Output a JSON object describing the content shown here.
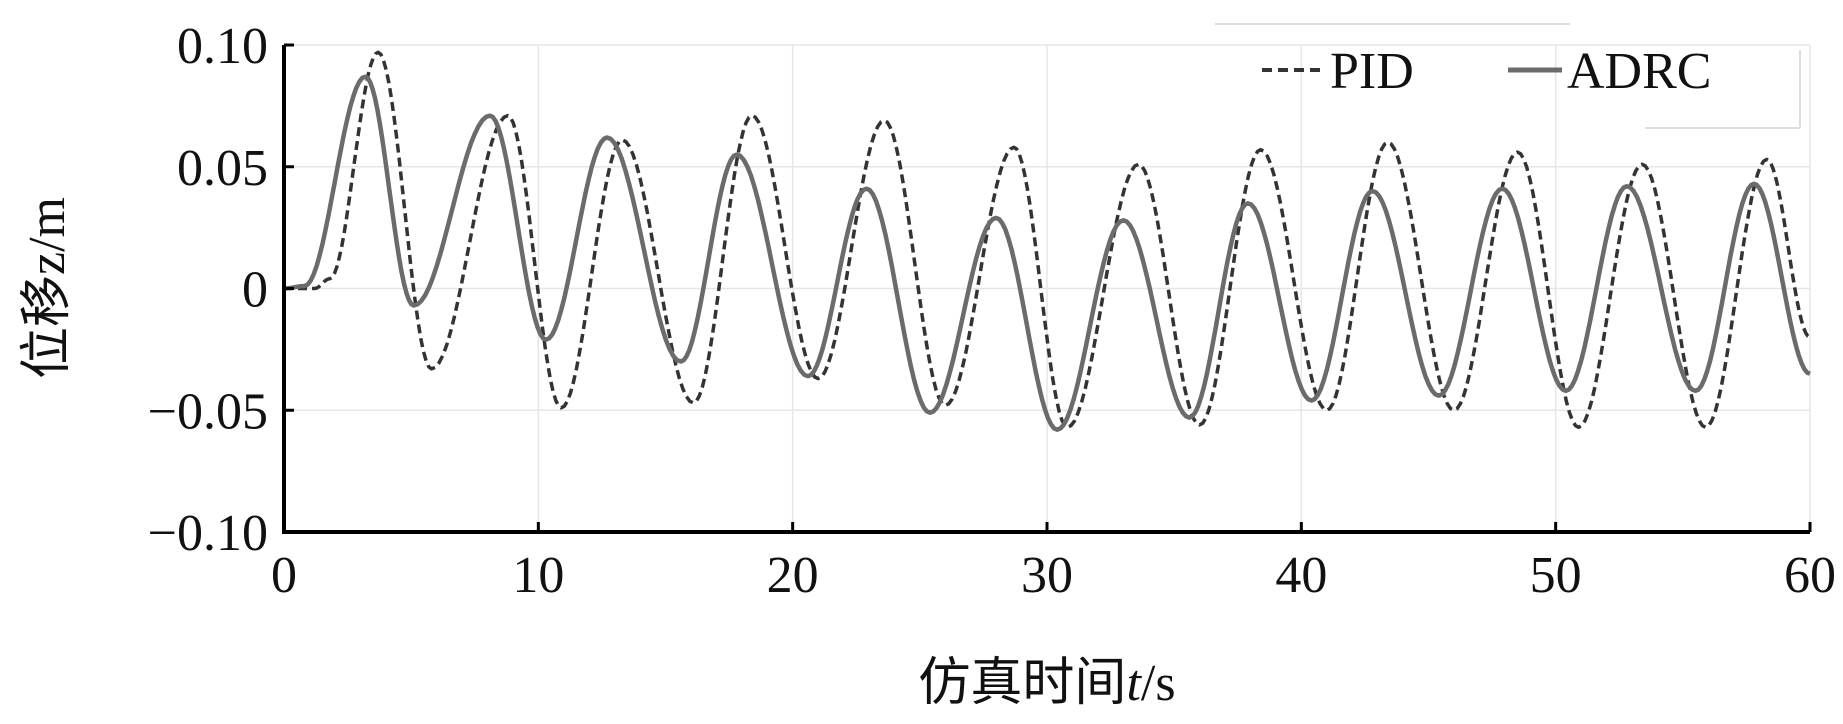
{
  "chart_data": {
    "type": "line",
    "xlabel": "仿真时间t/s",
    "xlabel_parts": {
      "text": "仿真时间",
      "var": "t",
      "unit": "/s"
    },
    "ylabel": "位移z/m",
    "ylabel_parts": {
      "text": "位移",
      "var": "z",
      "unit": "/m"
    },
    "xlim": [
      0,
      60
    ],
    "ylim": [
      -0.1,
      0.1
    ],
    "xticks": [
      "0",
      "10",
      "20",
      "30",
      "40",
      "50",
      "60"
    ],
    "yticks": [
      "0.10",
      "0.05",
      "0",
      "−0.05",
      "−0.10"
    ],
    "grid": true,
    "legend_position": "top-right",
    "series": [
      {
        "name": "PID",
        "style": "dashed",
        "color": "#333333",
        "points": [
          [
            0,
            0
          ],
          [
            1.2,
            0
          ],
          [
            1.8,
            0.004
          ],
          [
            3.7,
            0.097
          ],
          [
            5.8,
            -0.033
          ],
          [
            8.8,
            0.071
          ],
          [
            10.9,
            -0.049
          ],
          [
            13.3,
            0.061
          ],
          [
            16.1,
            -0.047
          ],
          [
            18.4,
            0.071
          ],
          [
            21.0,
            -0.037
          ],
          [
            23.6,
            0.069
          ],
          [
            26.0,
            -0.048
          ],
          [
            28.7,
            0.058
          ],
          [
            30.8,
            -0.057
          ],
          [
            33.6,
            0.051
          ],
          [
            36.0,
            -0.056
          ],
          [
            38.4,
            0.057
          ],
          [
            41.0,
            -0.05
          ],
          [
            43.4,
            0.06
          ],
          [
            46.0,
            -0.05
          ],
          [
            48.5,
            0.056
          ],
          [
            50.9,
            -0.057
          ],
          [
            53.4,
            0.051
          ],
          [
            55.9,
            -0.057
          ],
          [
            58.3,
            0.053
          ],
          [
            60,
            -0.02
          ]
        ]
      },
      {
        "name": "ADRC",
        "style": "solid",
        "color": "#6b6b6b",
        "points": [
          [
            0,
            0
          ],
          [
            0.8,
            0.001
          ],
          [
            3.2,
            0.087
          ],
          [
            5.1,
            -0.007
          ],
          [
            8.1,
            0.071
          ],
          [
            10.3,
            -0.021
          ],
          [
            12.7,
            0.062
          ],
          [
            15.6,
            -0.03
          ],
          [
            17.8,
            0.055
          ],
          [
            20.6,
            -0.036
          ],
          [
            22.9,
            0.041
          ],
          [
            25.4,
            -0.051
          ],
          [
            28.0,
            0.029
          ],
          [
            30.4,
            -0.058
          ],
          [
            33.0,
            0.028
          ],
          [
            35.6,
            -0.053
          ],
          [
            37.9,
            0.035
          ],
          [
            40.4,
            -0.046
          ],
          [
            42.8,
            0.04
          ],
          [
            45.4,
            -0.044
          ],
          [
            47.9,
            0.041
          ],
          [
            50.4,
            -0.042
          ],
          [
            52.8,
            0.042
          ],
          [
            55.5,
            -0.042
          ],
          [
            57.8,
            0.043
          ],
          [
            60,
            -0.035
          ]
        ]
      }
    ]
  }
}
